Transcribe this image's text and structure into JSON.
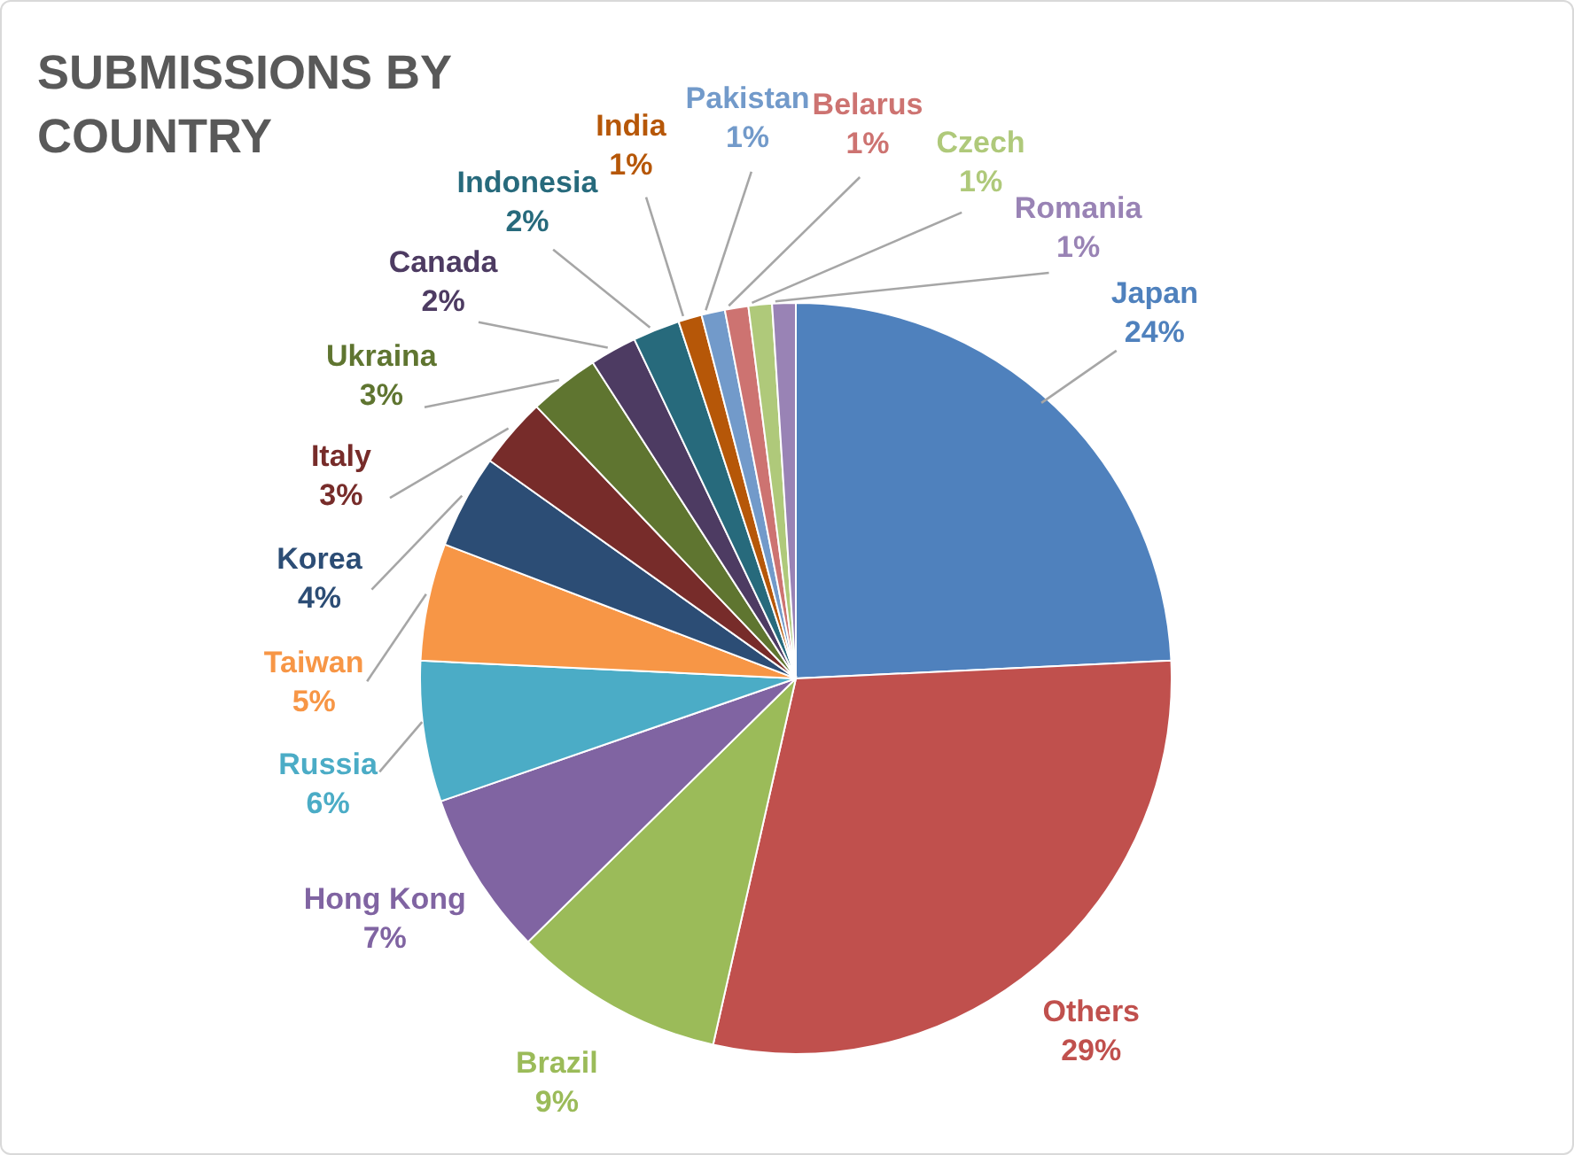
{
  "chart_data": {
    "type": "pie",
    "title": "SUBMISSIONS BY COUNTRY",
    "categories": [
      "Japan",
      "Others",
      "Brazil",
      "Hong Kong",
      "Russia",
      "Taiwan",
      "Korea",
      "Italy",
      "Ukraina",
      "Canada",
      "Indonesia",
      "India",
      "Pakistan",
      "Belarus",
      "Czech",
      "Romania"
    ],
    "values": [
      24,
      29,
      9,
      7,
      6,
      5,
      4,
      3,
      3,
      2,
      2,
      1,
      1,
      1,
      1,
      1
    ],
    "value_labels": [
      "24%",
      "29%",
      "9%",
      "7%",
      "6%",
      "5%",
      "4%",
      "3%",
      "3%",
      "2%",
      "2%",
      "1%",
      "1%",
      "1%",
      "1%",
      "1%"
    ],
    "colors": [
      "#4f81bd",
      "#c0504d",
      "#9bbb59",
      "#8064a2",
      "#4bacc6",
      "#f79646",
      "#2c4d75",
      "#772c2a",
      "#5f7530",
      "#4d3b62",
      "#276a7c",
      "#b65708",
      "#729aca",
      "#cd7371",
      "#afc97a",
      "#9983b5"
    ],
    "legend": false
  }
}
